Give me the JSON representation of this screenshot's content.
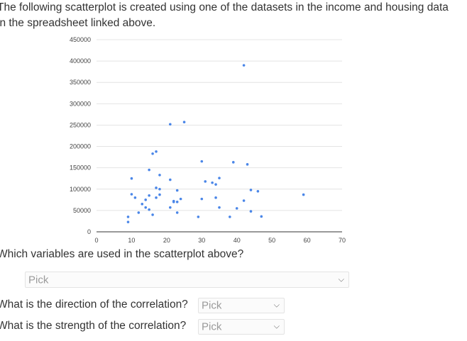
{
  "intro_text": "The following scatterplot is created using one of the datasets in the income and housing data in the spreadsheet linked above.",
  "chart_data": {
    "type": "scatter",
    "title": "",
    "xlabel": "",
    "ylabel": "",
    "xlim": [
      0,
      70
    ],
    "ylim": [
      0,
      450000
    ],
    "x_ticks": [
      0,
      10,
      20,
      30,
      40,
      50,
      60,
      70
    ],
    "y_ticks": [
      0,
      50000,
      100000,
      150000,
      200000,
      250000,
      300000,
      350000,
      400000,
      450000
    ],
    "grid": true,
    "point_color": "#4a86e8",
    "x": [
      9,
      9,
      10,
      10,
      11,
      12,
      13,
      14,
      14,
      15,
      15,
      15,
      16,
      16,
      17,
      17,
      17,
      18,
      18,
      18,
      21,
      21,
      21,
      22,
      22,
      23,
      23,
      23,
      24,
      25,
      29,
      30,
      30,
      31,
      33,
      34,
      34,
      35,
      35,
      38,
      39,
      40,
      42,
      42,
      43,
      44,
      44,
      46,
      47,
      59
    ],
    "y": [
      23000,
      35000,
      125000,
      88000,
      80000,
      45000,
      65000,
      57000,
      75000,
      52000,
      85000,
      145000,
      40000,
      183000,
      80000,
      188000,
      103000,
      87000,
      100000,
      133000,
      57000,
      122000,
      252000,
      70000,
      72000,
      97000,
      45000,
      70000,
      77000,
      257000,
      35000,
      77000,
      165000,
      118000,
      115000,
      111000,
      80000,
      57000,
      126000,
      35000,
      163000,
      55000,
      390000,
      73000,
      158000,
      48000,
      98000,
      95000,
      36000,
      87000
    ]
  },
  "questions": [
    {
      "text": "Which variables are used in the scatterplot above?",
      "placeholder": "Pick"
    },
    {
      "text": "What is the direction of the correlation?",
      "placeholder": "Pick"
    },
    {
      "text": "What is the strength of the correlation?",
      "placeholder": "Pick"
    }
  ],
  "icons": {
    "dropdown": "chevron-down-icon"
  }
}
